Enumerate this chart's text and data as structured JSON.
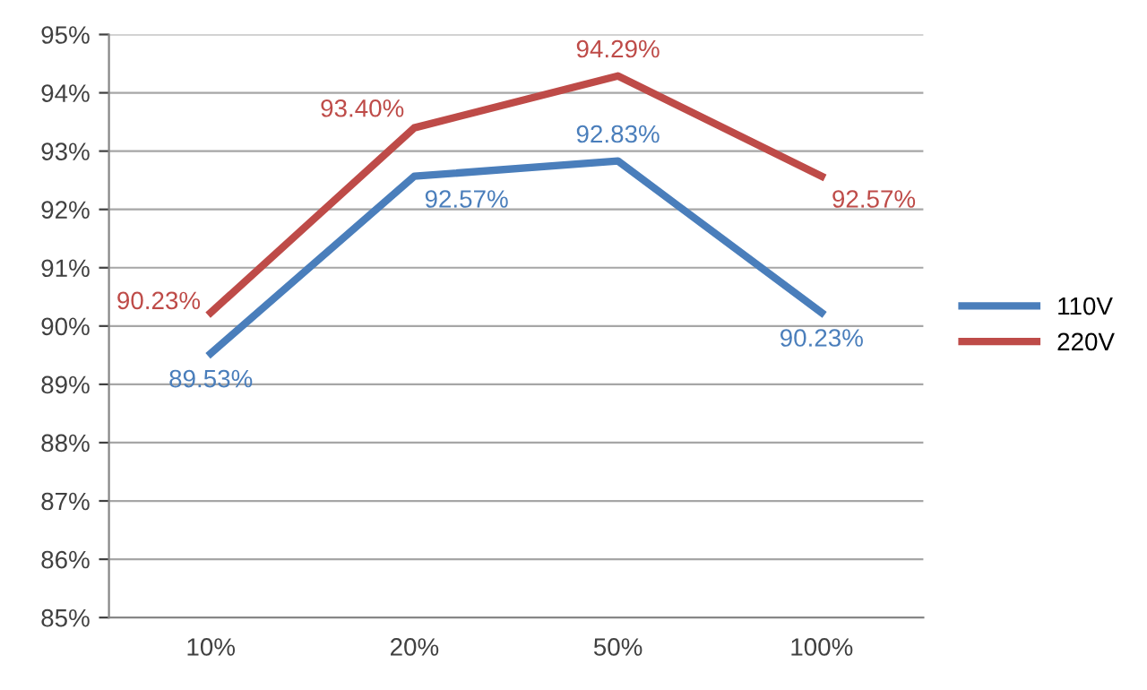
{
  "chart_data": {
    "type": "line",
    "categories": [
      "10%",
      "20%",
      "50%",
      "100%"
    ],
    "series": [
      {
        "name": "110V",
        "color": "#4a7ebb",
        "values": [
          89.53,
          92.57,
          92.83,
          90.23
        ],
        "value_labels": [
          "89.53%",
          "92.57%",
          "92.83%",
          "90.23%"
        ]
      },
      {
        "name": "220V",
        "color": "#be4b48",
        "values": [
          90.23,
          93.4,
          94.29,
          92.57
        ],
        "value_labels": [
          "90.23%",
          "93.40%",
          "94.29%",
          "92.57%"
        ]
      }
    ],
    "ylim": [
      85,
      95
    ],
    "yticks": [
      {
        "value": 85,
        "label": "85%"
      },
      {
        "value": 86,
        "label": "86%"
      },
      {
        "value": 87,
        "label": "87%"
      },
      {
        "value": 88,
        "label": "88%"
      },
      {
        "value": 89,
        "label": "89%"
      },
      {
        "value": 90,
        "label": "90%"
      },
      {
        "value": 91,
        "label": "91%"
      },
      {
        "value": 92,
        "label": "92%"
      },
      {
        "value": 93,
        "label": "93%"
      },
      {
        "value": 94,
        "label": "94%"
      },
      {
        "value": 95,
        "label": "95%"
      }
    ],
    "grid": "y",
    "legend": "right",
    "marker": "none",
    "line_style": "solid"
  }
}
